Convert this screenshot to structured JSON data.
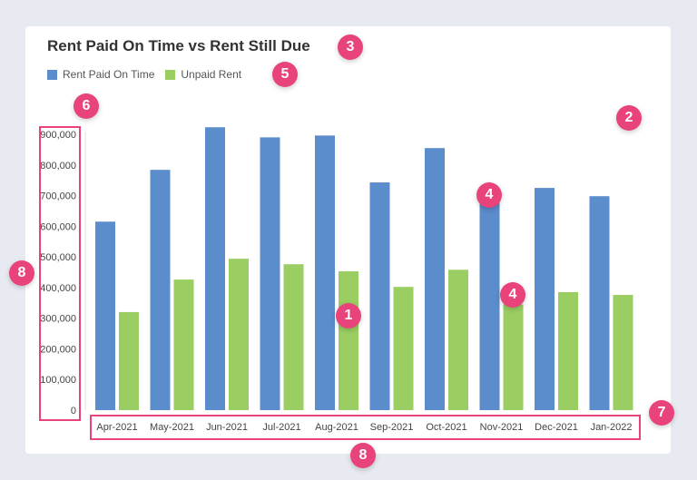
{
  "chart_data": {
    "type": "bar",
    "title": "Rent Paid On Time vs Rent Still Due",
    "categories": [
      "Apr-2021",
      "May-2021",
      "Jun-2021",
      "Jul-2021",
      "Aug-2021",
      "Sep-2021",
      "Oct-2021",
      "Nov-2021",
      "Dec-2021",
      "Jan-2022"
    ],
    "series": [
      {
        "name": "Rent Paid On Time",
        "color": "#5b8ccb",
        "values": [
          615000,
          784000,
          923000,
          890000,
          896000,
          743000,
          855000,
          680000,
          725000,
          698000
        ]
      },
      {
        "name": "Unpaid Rent",
        "color": "#9acd62",
        "values": [
          320000,
          426000,
          494000,
          476000,
          453000,
          402000,
          458000,
          345000,
          385000,
          376000
        ]
      }
    ],
    "yticks": [
      "0",
      "100,000",
      "200,000",
      "300,000",
      "400,000",
      "500,000",
      "600,000",
      "700,000",
      "800,000",
      "900,000"
    ],
    "ylim": [
      0,
      900000
    ],
    "grid": false,
    "legend": "top-left"
  },
  "annotations": [
    "1",
    "2",
    "3",
    "4",
    "4",
    "5",
    "6",
    "7",
    "8",
    "8"
  ]
}
